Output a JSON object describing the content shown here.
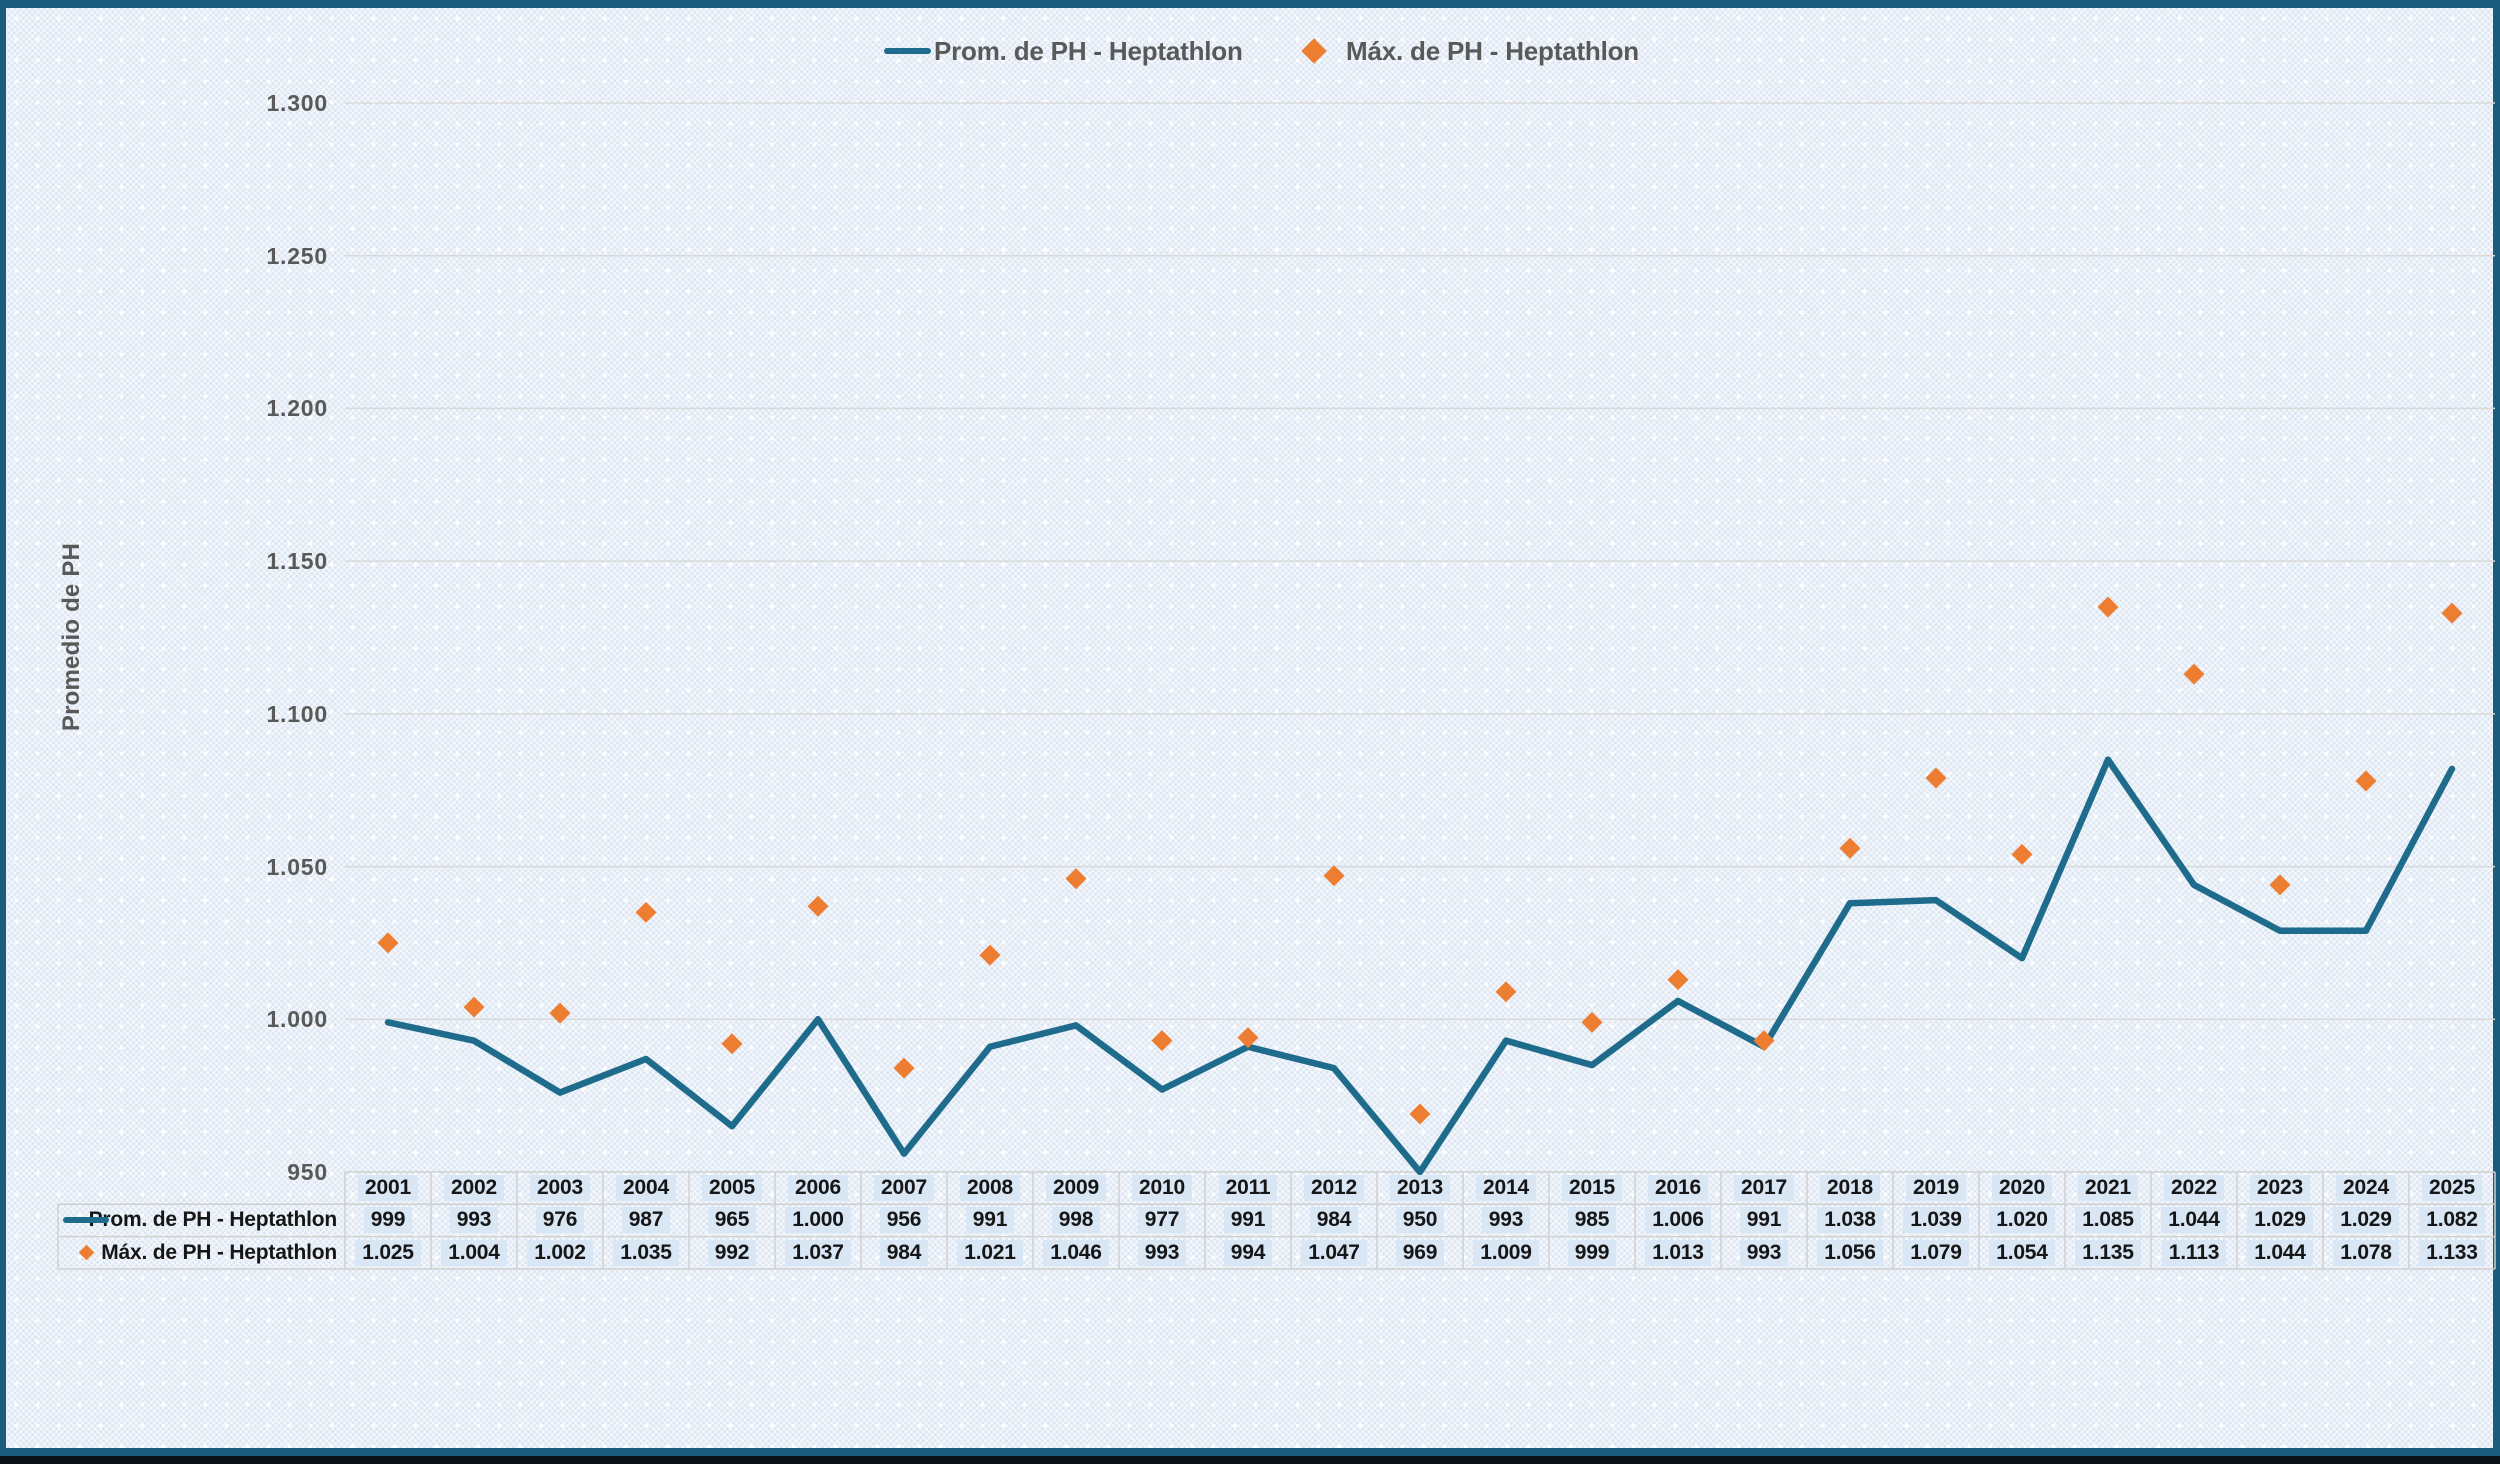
{
  "colors": {
    "line": "#1F6B8C",
    "marker": "#ED7D31",
    "frame_border": "#1B5B7C",
    "gridline": "#D9D9D9",
    "axis_text": "#595959",
    "table_border": "#D0D0D0",
    "cell_highlight": "#D9E6F4"
  },
  "legend": {
    "position": "top",
    "items": [
      {
        "swatch": "line-swatch-icon",
        "label": "Prom. de PH - Heptathlon"
      },
      {
        "swatch": "diamond-swatch-icon",
        "label": "Máx. de PH - Heptathlon"
      }
    ]
  },
  "y_axis": {
    "title": "Promedio de PH",
    "ticks": [
      {
        "label": "1.300",
        "value": 1300
      },
      {
        "label": "1.250",
        "value": 1250
      },
      {
        "label": "1.200",
        "value": 1200
      },
      {
        "label": "1.150",
        "value": 1150
      },
      {
        "label": "1.100",
        "value": 1100
      },
      {
        "label": "1.050",
        "value": 1050
      },
      {
        "label": "1.000",
        "value": 1000
      },
      {
        "label": "950",
        "value": 950
      }
    ]
  },
  "chart_data": {
    "type": "line",
    "title": "",
    "xlabel": "",
    "ylabel": "Promedio de PH",
    "ylim": [
      950,
      1300
    ],
    "grid": "horizontal",
    "legend_position": "top",
    "categories": [
      2001,
      2002,
      2003,
      2004,
      2005,
      2006,
      2007,
      2008,
      2009,
      2010,
      2011,
      2012,
      2013,
      2014,
      2015,
      2016,
      2017,
      2018,
      2019,
      2020,
      2021,
      2022,
      2023,
      2024,
      2025
    ],
    "series": [
      {
        "name": "Prom. de PH - Heptathlon",
        "type": "line",
        "values": [
          999,
          993,
          976,
          987,
          965,
          1000,
          956,
          991,
          998,
          977,
          991,
          984,
          950,
          993,
          985,
          1006,
          991,
          1038,
          1039,
          1020,
          1085,
          1044,
          1029,
          1029,
          1082
        ],
        "display": [
          "999",
          "993",
          "976",
          "987",
          "965",
          "1.000",
          "956",
          "991",
          "998",
          "977",
          "991",
          "984",
          "950",
          "993",
          "985",
          "1.006",
          "991",
          "1.038",
          "1.039",
          "1.020",
          "1.085",
          "1.044",
          "1.029",
          "1.029",
          "1.082"
        ]
      },
      {
        "name": "Máx. de PH - Heptathlon",
        "type": "scatter-diamond",
        "values": [
          1025,
          1004,
          1002,
          1035,
          992,
          1037,
          984,
          1021,
          1046,
          993,
          994,
          1047,
          969,
          1009,
          999,
          1013,
          993,
          1056,
          1079,
          1054,
          1135,
          1113,
          1044,
          1078,
          1133
        ],
        "display": [
          "1.025",
          "1.004",
          "1.002",
          "1.035",
          "992",
          "1.037",
          "984",
          "1.021",
          "1.046",
          "993",
          "994",
          "1.047",
          "969",
          "1.009",
          "999",
          "1.013",
          "993",
          "1.056",
          "1.079",
          "1.054",
          "1.135",
          "1.113",
          "1.044",
          "1.078",
          "1.133"
        ]
      }
    ]
  },
  "table": {
    "row_labels": [
      "Prom. de PH - Heptathlon",
      "Máx. de PH - Heptathlon"
    ]
  }
}
